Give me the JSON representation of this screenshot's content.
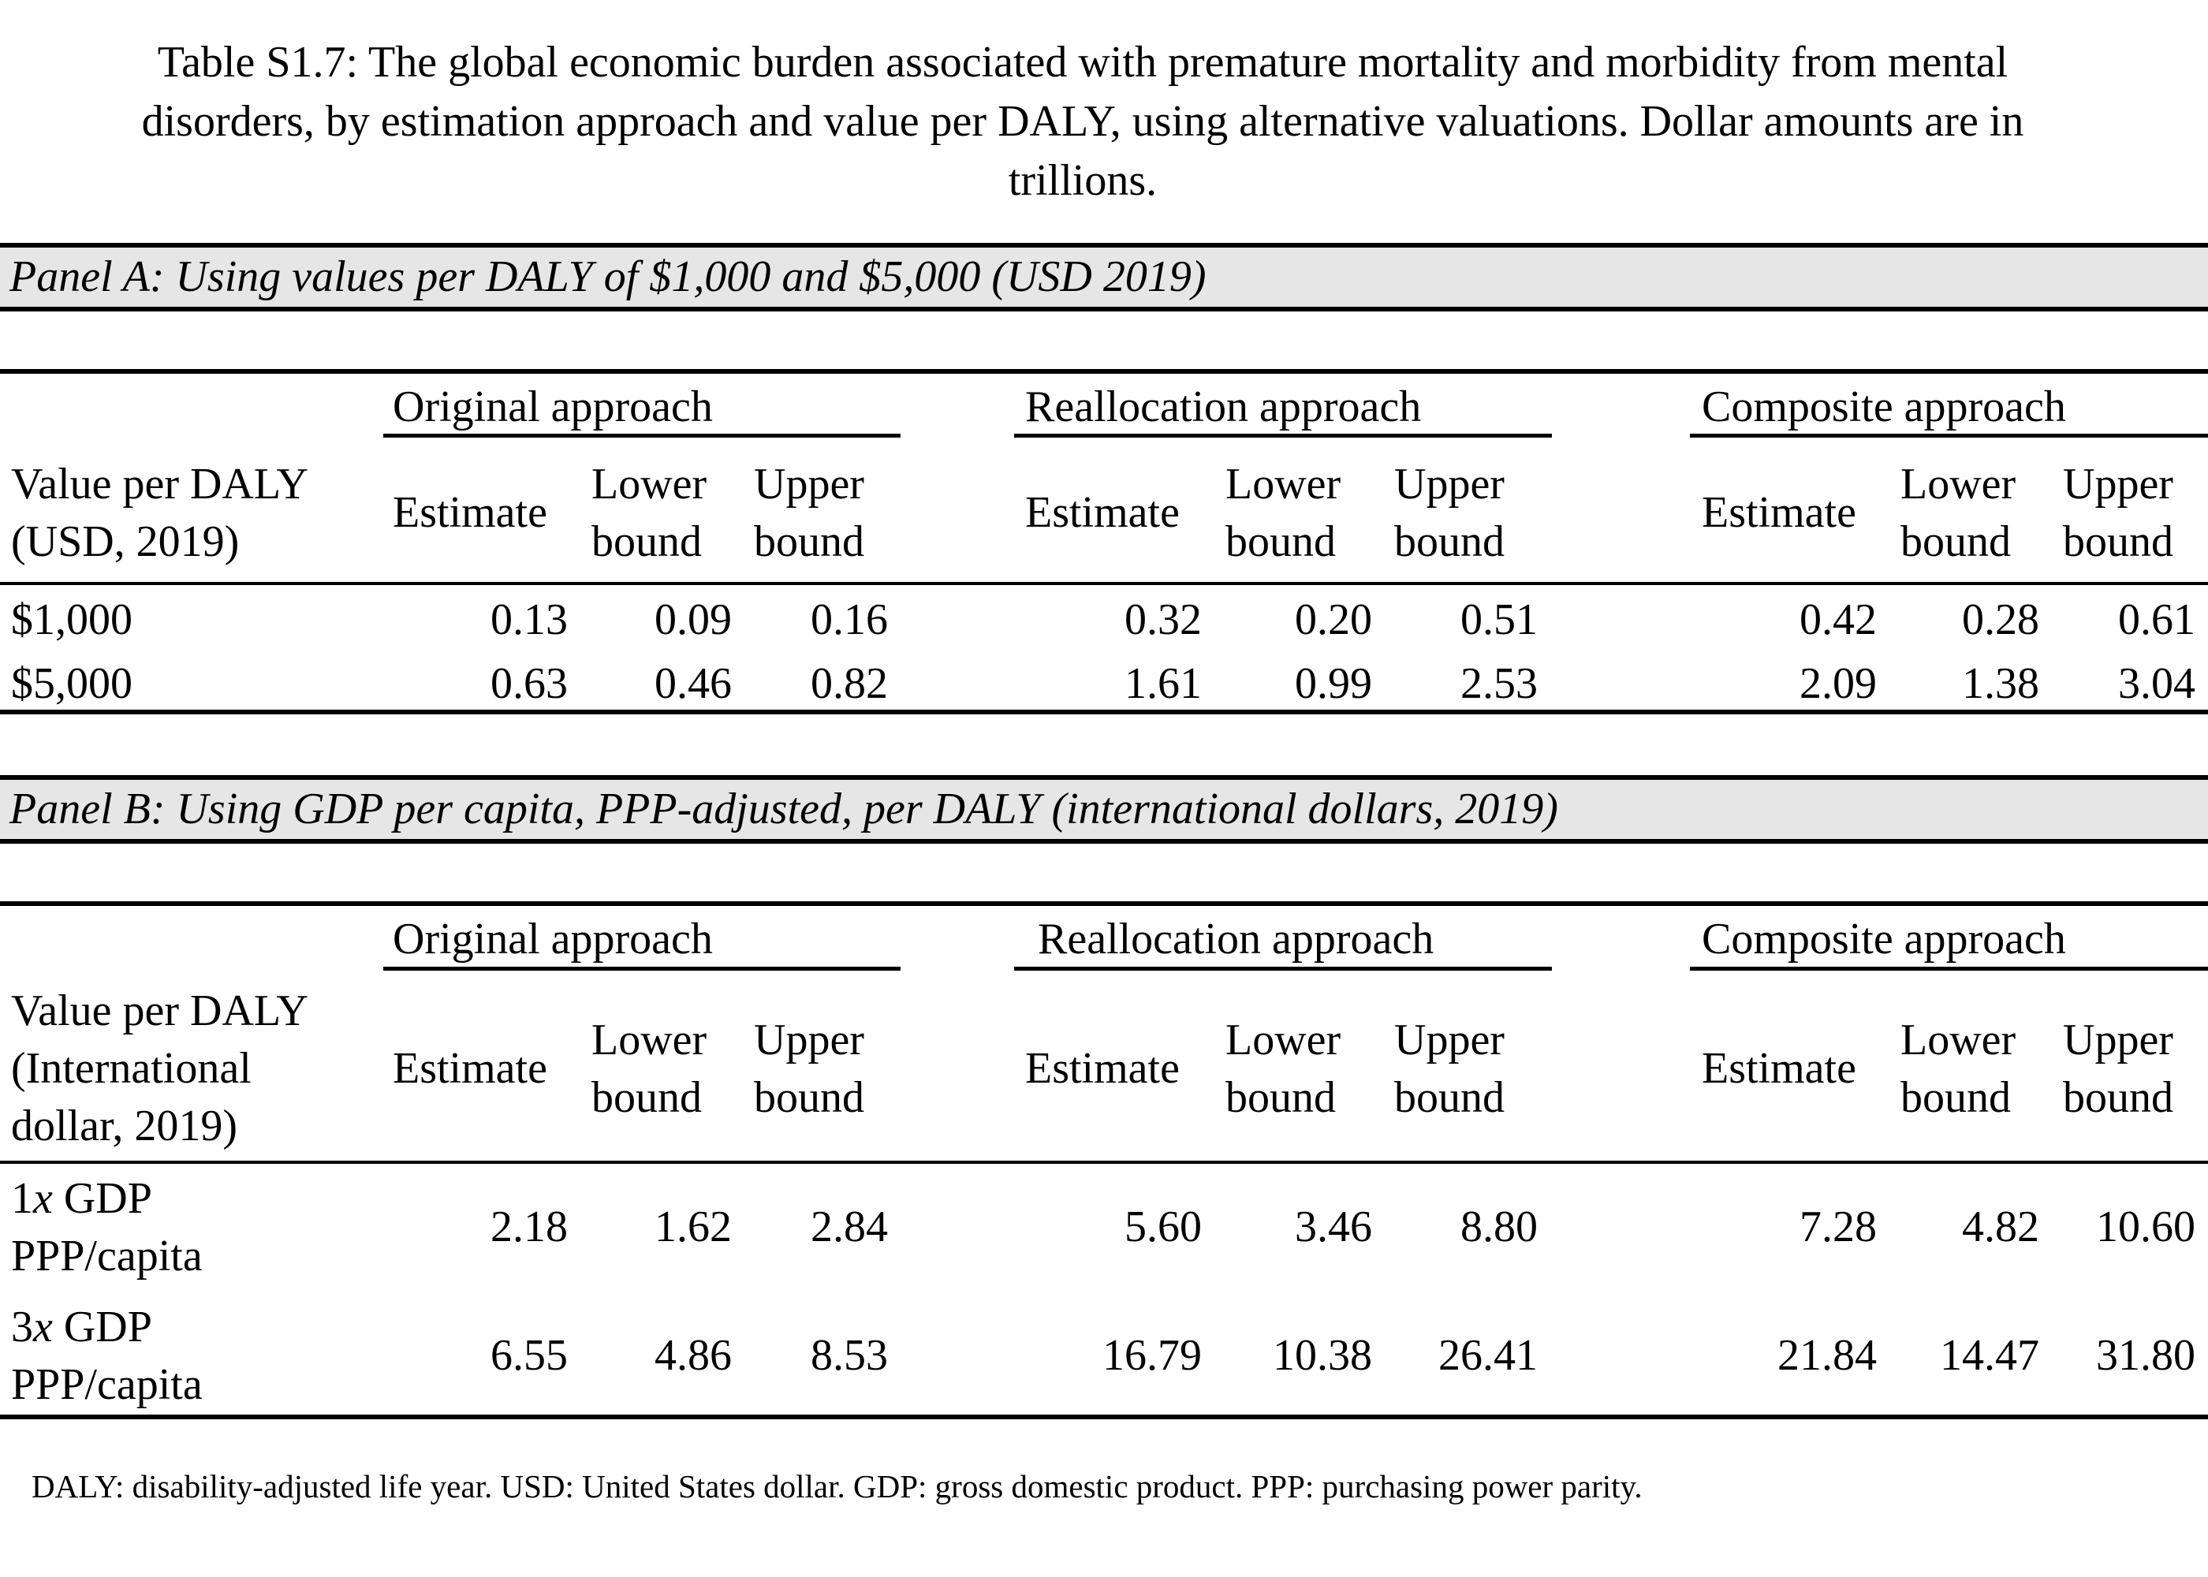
{
  "caption_line1": "Table S1.7: The global economic burden associated with premature mortality and morbidity from mental",
  "caption_line2": "disorders, by estimation approach and value per DALY, using alternative valuations. Dollar amounts are in",
  "caption_line3": "trillions.",
  "panels": [
    {
      "title": "Panel A: Using values per DALY of $1,000 and $5,000 (USD 2019)",
      "row_header": [
        "Value per DALY",
        "(USD, 2019)"
      ],
      "groups": [
        "Original approach",
        "Reallocation approach",
        "Composite approach"
      ],
      "col_estimate": "Estimate",
      "col_lower": [
        "Lower",
        "bound"
      ],
      "col_upper": [
        "Upper",
        "bound"
      ],
      "rows": [
        {
          "label": [
            "$1,000"
          ],
          "values": [
            "0.13",
            "0.09",
            "0.16",
            "0.32",
            "0.20",
            "0.51",
            "0.42",
            "0.28",
            "0.61"
          ]
        },
        {
          "label": [
            "$5,000"
          ],
          "values": [
            "0.63",
            "0.46",
            "0.82",
            "1.61",
            "0.99",
            "2.53",
            "2.09",
            "1.38",
            "3.04"
          ]
        }
      ]
    },
    {
      "title": "Panel B: Using GDP per capita, PPP-adjusted, per DALY (international dollars, 2019)",
      "row_header": [
        "Value per DALY",
        "(International",
        "dollar, 2019)"
      ],
      "groups": [
        "Original approach",
        "Reallocation approach",
        "Composite approach"
      ],
      "col_estimate": "Estimate",
      "col_lower": [
        "Lower",
        "bound"
      ],
      "col_upper": [
        "Upper",
        "bound"
      ],
      "rows": [
        {
          "label_mult": "1",
          "label_x": "x",
          "label_rest": " GDP",
          "label_line2": "PPP/capita",
          "values": [
            "2.18",
            "1.62",
            "2.84",
            "5.60",
            "3.46",
            "8.80",
            "7.28",
            "4.82",
            "10.60"
          ]
        },
        {
          "label_mult": "3",
          "label_x": "x",
          "label_rest": " GDP",
          "label_line2": "PPP/capita",
          "values": [
            "6.55",
            "4.86",
            "8.53",
            "16.79",
            "10.38",
            "26.41",
            "21.84",
            "14.47",
            "31.80"
          ]
        }
      ]
    }
  ],
  "footnote": "DALY: disability-adjusted life year. USD: United States dollar. GDP: gross domestic product. PPP: purchasing power parity."
}
